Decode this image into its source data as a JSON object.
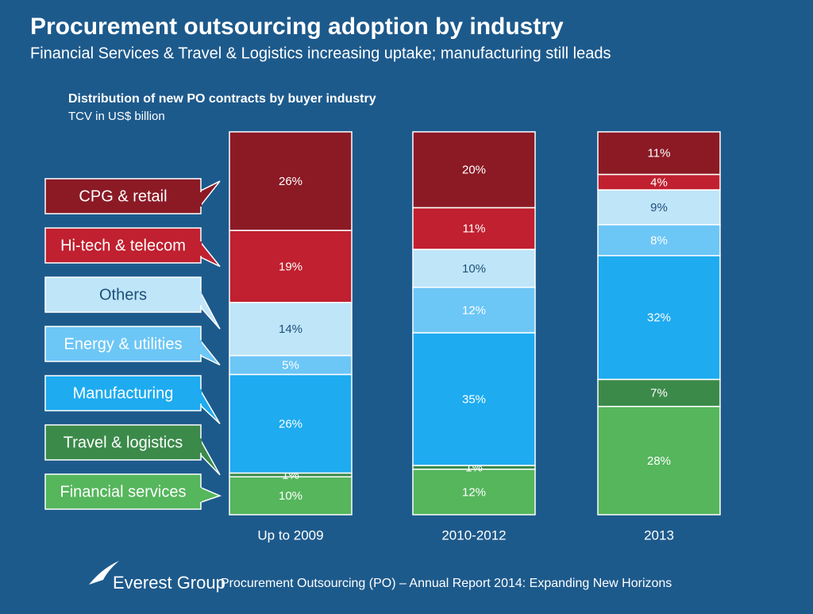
{
  "chart_data": {
    "type": "stacked-bar",
    "title": "Procurement outsourcing adoption by industry",
    "subtitle": "Financial Services & Travel & Logistics increasing uptake; manufacturing still leads",
    "chart_title": "Distribution of new PO contracts by buyer industry",
    "chart_subtitle": "TCV in US$ billion",
    "categories": [
      "Up to 2009",
      "2010-2012",
      "2013"
    ],
    "series": [
      {
        "name": "Financial services",
        "color": "#55b65c",
        "text_color": "#ffffff",
        "values": [
          10,
          12,
          28
        ],
        "value_labels": [
          "10%",
          "12%",
          "28%"
        ]
      },
      {
        "name": "Travel & logistics",
        "color": "#3b8a4a",
        "text_color": "#ffffff",
        "values": [
          1,
          1,
          7
        ],
        "value_labels": [
          "1%",
          "1%",
          "7%"
        ]
      },
      {
        "name": "Manufacturing",
        "color": "#1eabf0",
        "text_color": "#ffffff",
        "values": [
          26,
          35,
          32
        ],
        "value_labels": [
          "26%",
          "35%",
          "32%"
        ]
      },
      {
        "name": "Energy & utilities",
        "color": "#6cc6f6",
        "text_color": "#ffffff",
        "values": [
          5,
          12,
          8
        ],
        "value_labels": [
          "5%",
          "12%",
          "8%"
        ]
      },
      {
        "name": "Others",
        "color": "#bfe5f9",
        "text_color": "#1d4f7a",
        "values": [
          14,
          10,
          9
        ],
        "value_labels": [
          "14%",
          "10%",
          "9%"
        ]
      },
      {
        "name": "Hi-tech & telecom",
        "color": "#c0202f",
        "text_color": "#ffffff",
        "values": [
          19,
          11,
          4
        ],
        "value_labels": [
          "19%",
          "11%",
          "4%"
        ]
      },
      {
        "name": "CPG & retail",
        "color": "#8b1a25",
        "text_color": "#ffffff",
        "values": [
          26,
          20,
          11
        ],
        "value_labels": [
          "26%",
          "20%",
          "11%"
        ]
      }
    ]
  },
  "footer": {
    "brand": "Everest Group",
    "text": "Procurement Outsourcing (PO) – Annual Report 2014: Expanding New Horizons"
  }
}
